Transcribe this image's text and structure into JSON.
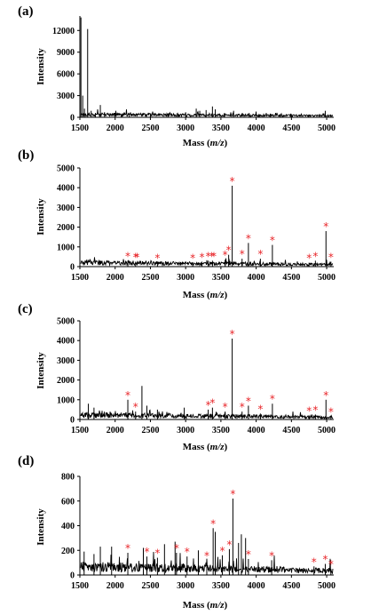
{
  "chart_data": [
    {
      "type": "line",
      "panel_label": "(a)",
      "xlabel_main": "Mass (",
      "xlabel_italic": "m/z",
      "xlabel_end": ")",
      "ylabel": "Intensity",
      "xlim": [
        1500,
        5100
      ],
      "ylim": [
        0,
        14000
      ],
      "x_ticks": [
        1500,
        2000,
        2500,
        3000,
        3500,
        4000,
        4500,
        5000
      ],
      "x_tick_labels": [
        "1500",
        "2000",
        "2500",
        "3000",
        "3500",
        "4000",
        "4500",
        "5000"
      ],
      "y_ticks": [
        0,
        3000,
        6000,
        9000,
        12000
      ],
      "y_tick_labels": [
        "0",
        "3000",
        "6000",
        "9000",
        "12000"
      ],
      "baseline": 350,
      "peaks": [
        [
          1515,
          13800
        ],
        [
          1540,
          3000
        ],
        [
          1565,
          1200
        ],
        [
          1610,
          12200
        ],
        [
          1660,
          900
        ],
        [
          1720,
          600
        ],
        [
          1790,
          1700
        ],
        [
          1850,
          700
        ],
        [
          2000,
          600
        ],
        [
          2200,
          500
        ],
        [
          2500,
          500
        ],
        [
          2750,
          550
        ],
        [
          3000,
          700
        ],
        [
          3150,
          1200
        ],
        [
          3200,
          900
        ],
        [
          3290,
          1000
        ],
        [
          3380,
          1500
        ],
        [
          3420,
          1100
        ],
        [
          3550,
          600
        ],
        [
          3680,
          900
        ],
        [
          3900,
          600
        ],
        [
          4200,
          500
        ],
        [
          4500,
          450
        ],
        [
          4980,
          900
        ]
      ],
      "stars": []
    },
    {
      "type": "line",
      "panel_label": "(b)",
      "xlabel_main": "Mass (",
      "xlabel_italic": "m/z",
      "xlabel_end": ")",
      "ylabel": "Intensity",
      "xlim": [
        1500,
        5100
      ],
      "ylim": [
        0,
        5000
      ],
      "x_ticks": [
        1500,
        2000,
        2500,
        3000,
        3500,
        4000,
        4500,
        5000
      ],
      "x_tick_labels": [
        "1500",
        "2000",
        "2500",
        "3000",
        "3500",
        "4000",
        "4500",
        "5000"
      ],
      "y_ticks": [
        0,
        1000,
        2000,
        3000,
        4000,
        5000
      ],
      "y_tick_labels": [
        "0",
        "1000",
        "2000",
        "3000",
        "4000",
        "5000"
      ],
      "baseline": 180,
      "peaks": [
        [
          2180,
          300
        ],
        [
          2290,
          250
        ],
        [
          2600,
          200
        ],
        [
          3100,
          200
        ],
        [
          3230,
          250
        ],
        [
          3320,
          300
        ],
        [
          3380,
          300
        ],
        [
          3560,
          350
        ],
        [
          3610,
          600
        ],
        [
          3660,
          4100
        ],
        [
          3800,
          400
        ],
        [
          3890,
          1200
        ],
        [
          4060,
          400
        ],
        [
          4230,
          1100
        ],
        [
          4750,
          200
        ],
        [
          4840,
          300
        ],
        [
          4990,
          1800
        ],
        [
          5060,
          250
        ]
      ],
      "stars": [
        [
          2180,
          300
        ],
        [
          2290,
          250
        ],
        [
          2310,
          250
        ],
        [
          2600,
          200
        ],
        [
          3100,
          200
        ],
        [
          3230,
          250
        ],
        [
          3320,
          300
        ],
        [
          3370,
          300
        ],
        [
          3400,
          300
        ],
        [
          3560,
          350
        ],
        [
          3610,
          600
        ],
        [
          3660,
          4100
        ],
        [
          3800,
          400
        ],
        [
          3890,
          1200
        ],
        [
          4060,
          400
        ],
        [
          4230,
          1100
        ],
        [
          4750,
          200
        ],
        [
          4840,
          300
        ],
        [
          4990,
          1800
        ],
        [
          5060,
          250
        ]
      ]
    },
    {
      "type": "line",
      "panel_label": "(c)",
      "xlabel_main": "Mass (",
      "xlabel_italic": "m/z",
      "xlabel_end": ")",
      "ylabel": "Intensity",
      "xlim": [
        1500,
        5100
      ],
      "ylim": [
        0,
        5000
      ],
      "x_ticks": [
        1500,
        2000,
        2500,
        3000,
        3500,
        4000,
        4500,
        5000
      ],
      "x_tick_labels": [
        "1500",
        "2000",
        "2500",
        "3000",
        "3500",
        "4000",
        "4500",
        "5000"
      ],
      "y_ticks": [
        0,
        1000,
        2000,
        3000,
        4000,
        5000
      ],
      "y_tick_labels": [
        "0",
        "1000",
        "2000",
        "3000",
        "4000",
        "5000"
      ],
      "baseline": 200,
      "peaks": [
        [
          1620,
          800
        ],
        [
          1700,
          600
        ],
        [
          2180,
          1000
        ],
        [
          2290,
          400
        ],
        [
          2380,
          1700
        ],
        [
          2450,
          700
        ],
        [
          2600,
          500
        ],
        [
          2980,
          600
        ],
        [
          3320,
          500
        ],
        [
          3380,
          600
        ],
        [
          3560,
          400
        ],
        [
          3660,
          4100
        ],
        [
          3800,
          400
        ],
        [
          3890,
          700
        ],
        [
          4060,
          300
        ],
        [
          4230,
          800
        ],
        [
          4750,
          200
        ],
        [
          4840,
          250
        ],
        [
          4990,
          1000
        ],
        [
          5060,
          150
        ]
      ],
      "stars": [
        [
          2180,
          1000
        ],
        [
          2290,
          400
        ],
        [
          3320,
          500
        ],
        [
          3380,
          600
        ],
        [
          3560,
          400
        ],
        [
          3660,
          4100
        ],
        [
          3800,
          400
        ],
        [
          3890,
          700
        ],
        [
          4060,
          300
        ],
        [
          4230,
          800
        ],
        [
          4750,
          200
        ],
        [
          4840,
          250
        ],
        [
          4990,
          1000
        ],
        [
          5060,
          150
        ]
      ]
    },
    {
      "type": "line",
      "panel_label": "(d)",
      "xlabel_main": "Mass (",
      "xlabel_italic": "m/z",
      "xlabel_end": ")",
      "ylabel": "Intensity",
      "xlim": [
        1500,
        5100
      ],
      "ylim": [
        0,
        800
      ],
      "x_ticks": [
        1500,
        2000,
        2500,
        3000,
        3500,
        4000,
        4500,
        5000
      ],
      "x_tick_labels": [
        "1500",
        "2000",
        "2500",
        "3000",
        "3500",
        "4000",
        "4500",
        "5000"
      ],
      "y_ticks": [
        0,
        200,
        400,
        600,
        800
      ],
      "y_tick_labels": [
        "0",
        "200",
        "400",
        "600",
        "800"
      ],
      "baseline": 60,
      "peaks": [
        [
          1560,
          190
        ],
        [
          1700,
          170
        ],
        [
          1790,
          230
        ],
        [
          1950,
          230
        ],
        [
          2180,
          180
        ],
        [
          2400,
          220
        ],
        [
          2450,
          150
        ],
        [
          2600,
          140
        ],
        [
          2700,
          250
        ],
        [
          2850,
          270
        ],
        [
          2870,
          180
        ],
        [
          3020,
          150
        ],
        [
          3180,
          200
        ],
        [
          3300,
          120
        ],
        [
          3390,
          380
        ],
        [
          3420,
          350
        ],
        [
          3520,
          160
        ],
        [
          3620,
          210
        ],
        [
          3670,
          620
        ],
        [
          3750,
          260
        ],
        [
          3790,
          330
        ],
        [
          3850,
          300
        ],
        [
          3890,
          130
        ],
        [
          4220,
          120
        ],
        [
          4820,
          70
        ],
        [
          4980,
          90
        ],
        [
          5060,
          50
        ]
      ],
      "stars": [
        [
          2180,
          180
        ],
        [
          2450,
          150
        ],
        [
          2600,
          140
        ],
        [
          2870,
          180
        ],
        [
          3020,
          150
        ],
        [
          3300,
          120
        ],
        [
          3390,
          380
        ],
        [
          3520,
          160
        ],
        [
          3620,
          210
        ],
        [
          3670,
          620
        ],
        [
          3890,
          130
        ],
        [
          4220,
          120
        ],
        [
          4820,
          70
        ],
        [
          4980,
          90
        ],
        [
          5060,
          50
        ]
      ]
    }
  ]
}
